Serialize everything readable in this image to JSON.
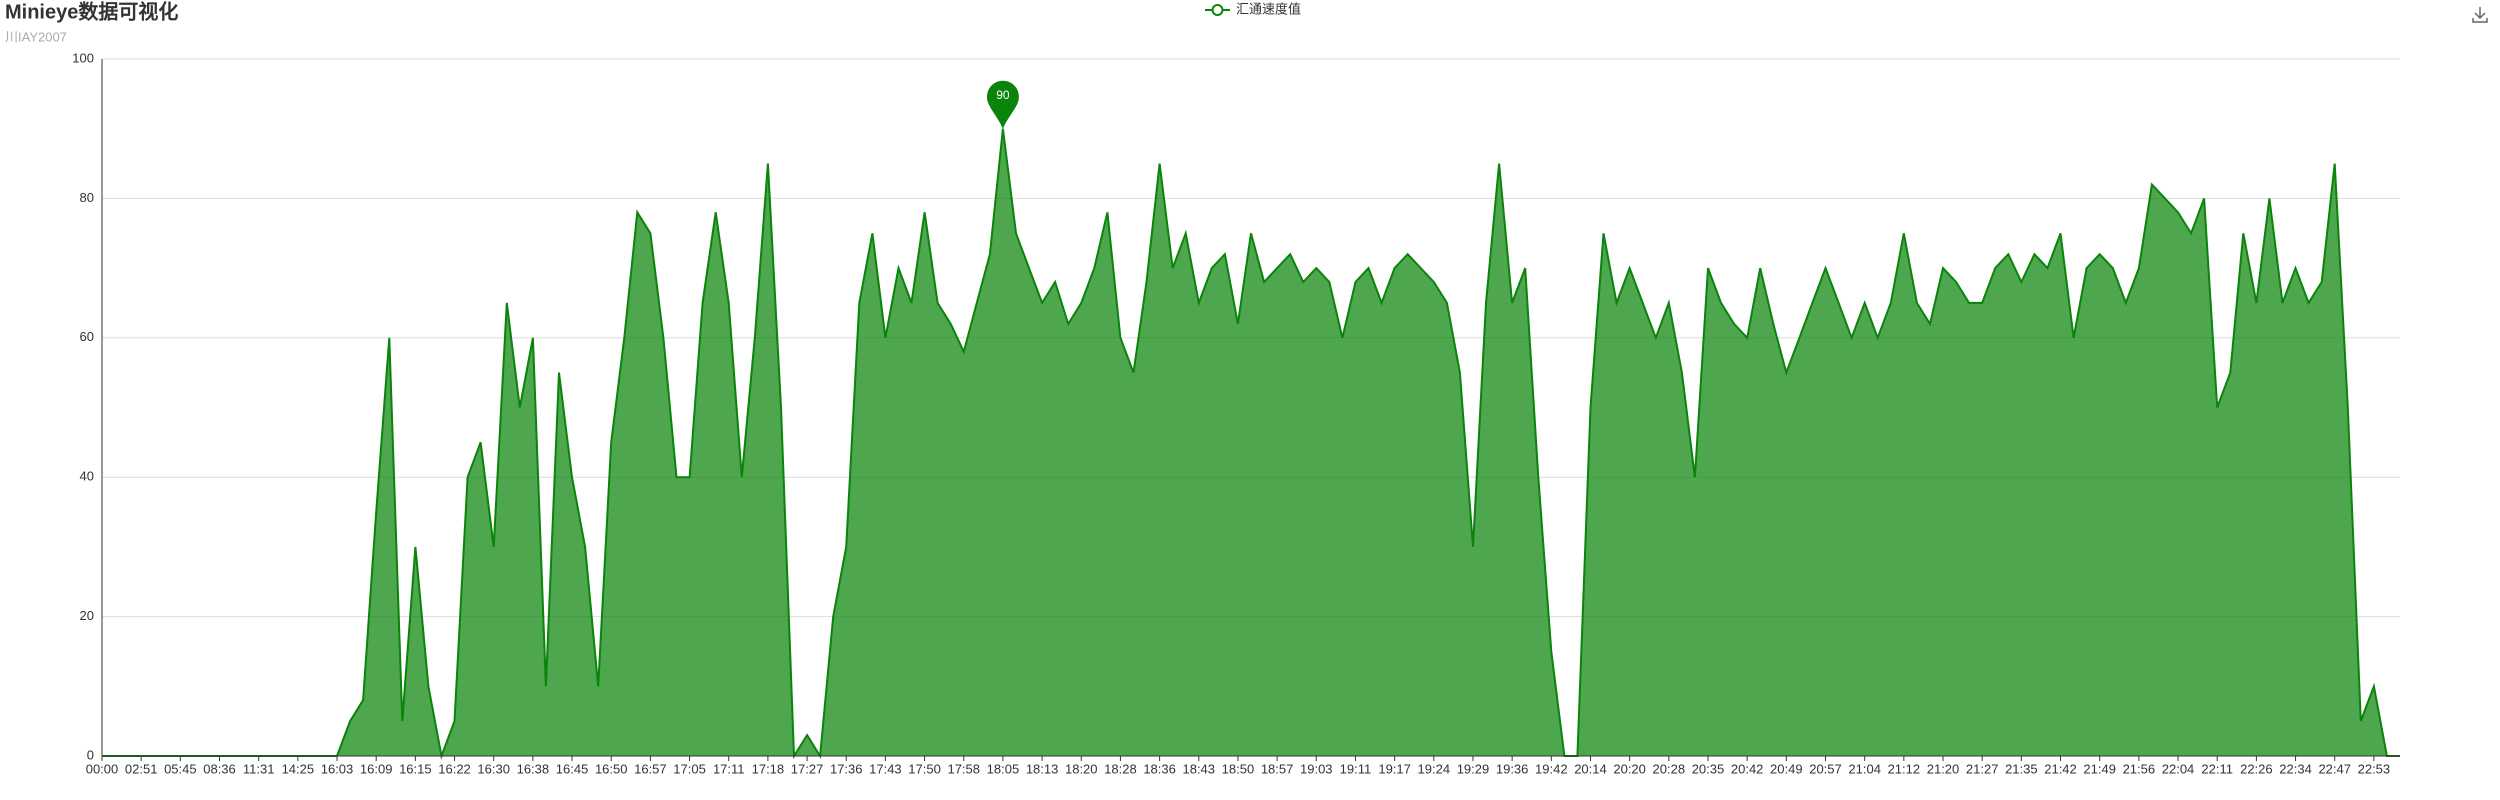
{
  "chart_data": {
    "type": "area",
    "title": "Minieye数据可视化",
    "subtitle": "川IAY2007",
    "categories": [
      "00:00",
      null,
      null,
      "02:51",
      null,
      null,
      "05:45",
      null,
      null,
      "08:36",
      null,
      null,
      "11:31",
      null,
      null,
      "14:25",
      null,
      null,
      "16:03",
      null,
      null,
      "16:09",
      null,
      null,
      "16:15",
      null,
      null,
      "16:22",
      null,
      null,
      "16:30",
      null,
      null,
      "16:38",
      null,
      null,
      "16:45",
      null,
      null,
      "16:50",
      null,
      null,
      "16:57",
      null,
      null,
      "17:05",
      null,
      null,
      "17:11",
      null,
      null,
      "17:18",
      null,
      null,
      "17:27",
      null,
      null,
      "17:36",
      null,
      null,
      "17:43",
      null,
      null,
      "17:50",
      null,
      null,
      "17:58",
      null,
      null,
      "18:05",
      null,
      null,
      "18:13",
      null,
      null,
      "18:20",
      null,
      null,
      "18:28",
      null,
      null,
      "18:36",
      null,
      null,
      "18:43",
      null,
      null,
      "18:50",
      null,
      null,
      "18:57",
      null,
      null,
      "19:03",
      null,
      null,
      "19:11",
      null,
      null,
      "19:17",
      null,
      null,
      "19:24",
      null,
      null,
      "19:29",
      null,
      null,
      "19:36",
      null,
      null,
      "19:42",
      null,
      null,
      "20:14",
      null,
      null,
      "20:20",
      null,
      null,
      "20:28",
      null,
      null,
      "20:35",
      null,
      null,
      "20:42",
      null,
      null,
      "20:49",
      null,
      null,
      "20:57",
      null,
      null,
      "21:04",
      null,
      null,
      "21:12",
      null,
      null,
      "21:20",
      null,
      null,
      "21:27",
      null,
      null,
      "21:35",
      null,
      null,
      "21:42",
      null,
      null,
      "21:49",
      null,
      null,
      "21:56",
      null,
      null,
      "22:04",
      null,
      null,
      "22:11",
      null,
      null,
      "22:26",
      null,
      null,
      "22:34",
      null,
      null,
      "22:47",
      null,
      null,
      "22:53",
      null,
      null
    ],
    "series": [
      {
        "name": "汇通速度值",
        "color": "#0a840a",
        "values": [
          0,
          0,
          0,
          0,
          0,
          0,
          0,
          0,
          0,
          0,
          0,
          0,
          0,
          0,
          0,
          0,
          0,
          0,
          0,
          5,
          8,
          35,
          60,
          5,
          30,
          10,
          0,
          5,
          40,
          45,
          30,
          65,
          50,
          60,
          10,
          55,
          40,
          30,
          10,
          45,
          60,
          78,
          75,
          60,
          40,
          40,
          65,
          78,
          65,
          40,
          60,
          85,
          50,
          0,
          3,
          0,
          20,
          30,
          65,
          75,
          60,
          70,
          65,
          78,
          65,
          62,
          58,
          65,
          72,
          90,
          75,
          70,
          65,
          68,
          62,
          65,
          70,
          78,
          60,
          55,
          68,
          85,
          70,
          75,
          65,
          70,
          72,
          62,
          75,
          68,
          70,
          72,
          68,
          70,
          68,
          60,
          68,
          70,
          65,
          70,
          72,
          70,
          68,
          65,
          55,
          30,
          65,
          85,
          65,
          70,
          40,
          15,
          0,
          0,
          50,
          75,
          65,
          70,
          65,
          60,
          65,
          55,
          40,
          70,
          65,
          62,
          60,
          70,
          62,
          55,
          60,
          65,
          70,
          65,
          60,
          65,
          60,
          65,
          75,
          65,
          62,
          70,
          68,
          65,
          65,
          70,
          72,
          68,
          72,
          70,
          75,
          60,
          70,
          72,
          70,
          65,
          70,
          82,
          80,
          78,
          75,
          80,
          50,
          55,
          75,
          65,
          80,
          65,
          70,
          65,
          68,
          85,
          50,
          5,
          10,
          0,
          0
        ]
      }
    ],
    "ylim": [
      0,
      100
    ],
    "yticks": [
      0,
      20,
      40,
      60,
      80,
      100
    ],
    "grid": true
  }
}
